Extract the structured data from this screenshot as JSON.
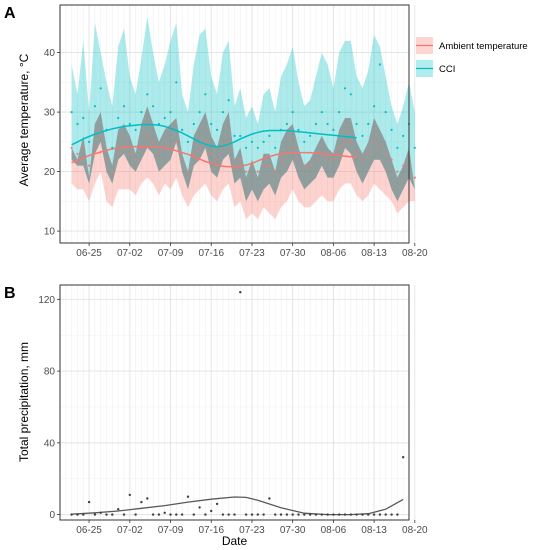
{
  "chart_data": [
    {
      "type": "line",
      "panel_label": "A",
      "ylabel": "Average temperature, °C",
      "xlabel": "",
      "x_tick_labels": [
        "06-25",
        "07-02",
        "07-09",
        "07-16",
        "07-23",
        "07-30",
        "08-06",
        "08-13",
        "08-20"
      ],
      "y_ticks": [
        10,
        20,
        30,
        40
      ],
      "xlim_days": [
        -5,
        55
      ],
      "ylim": [
        8,
        48
      ],
      "grid": true,
      "legend_position": "right",
      "series": [
        {
          "name": "Ambient temperature",
          "color": "#F8766D",
          "points": [
            24,
            23,
            24,
            21,
            24,
            26,
            22,
            20,
            23,
            24,
            23,
            22,
            24,
            26,
            25,
            23,
            24,
            24,
            25,
            22,
            20,
            23,
            24,
            25,
            23,
            22,
            24,
            25,
            21,
            22,
            20,
            21,
            20,
            21,
            21,
            20,
            22,
            23,
            24,
            22,
            21,
            21,
            22,
            23,
            22,
            22,
            24,
            25,
            25,
            23,
            22,
            23,
            25,
            24,
            23,
            22,
            20,
            21,
            22,
            19
          ],
          "smooth": [
            21.5,
            21.9,
            22.3,
            22.7,
            23.0,
            23.3,
            23.6,
            23.8,
            24.0,
            24.1,
            24.2,
            24.2,
            24.2,
            24.2,
            24.2,
            24.1,
            24.0,
            23.8,
            23.5,
            23.2,
            22.9,
            22.5,
            22.1,
            21.7,
            21.4,
            21.1,
            20.9,
            20.8,
            20.8,
            20.9,
            21.1,
            21.4,
            21.8,
            22.2,
            22.5,
            22.8,
            23.0,
            23.1,
            23.2,
            23.2,
            23.2,
            23.2,
            23.1,
            23.0,
            22.9,
            22.8,
            22.7,
            22.6,
            22.5,
            22.4
          ],
          "band_upper": [
            24,
            22,
            26,
            19,
            28,
            30,
            24,
            21,
            27,
            28,
            26,
            23,
            28,
            31,
            28,
            25,
            27,
            28,
            29,
            23,
            20,
            26,
            28,
            30,
            26,
            24,
            28,
            30,
            22,
            24,
            19,
            22,
            19,
            23,
            23,
            20,
            25,
            27,
            28,
            24,
            21,
            22,
            24,
            26,
            24,
            23,
            27,
            29,
            29,
            25,
            23,
            25,
            29,
            27,
            25,
            22,
            19,
            21,
            24,
            17
          ],
          "band_lower": [
            18,
            17,
            17,
            15,
            18,
            20,
            15,
            14,
            17,
            17,
            17,
            16,
            18,
            19,
            18,
            16,
            18,
            17,
            19,
            16,
            14,
            16,
            17,
            18,
            16,
            15,
            17,
            18,
            14,
            15,
            12,
            13,
            12,
            14,
            13,
            12,
            14,
            15,
            17,
            15,
            14,
            14,
            15,
            16,
            15,
            15,
            17,
            18,
            18,
            16,
            15,
            16,
            18,
            17,
            16,
            15,
            13,
            14,
            15,
            15
          ]
        },
        {
          "name": "CCI",
          "color": "#00BFC4",
          "points": [
            30,
            28,
            29,
            25,
            31,
            34,
            27,
            24,
            29,
            31,
            28,
            27,
            30,
            33,
            31,
            28,
            29,
            30,
            35,
            27,
            25,
            28,
            30,
            33,
            28,
            27,
            30,
            32,
            26,
            26,
            24,
            25,
            24,
            25,
            26,
            24,
            27,
            28,
            30,
            27,
            25,
            26,
            28,
            30,
            28,
            27,
            30,
            34,
            33,
            28,
            26,
            28,
            31,
            38,
            30,
            27,
            24,
            26,
            28,
            24
          ],
          "smooth": [
            24.5,
            25.0,
            25.5,
            25.9,
            26.3,
            26.6,
            26.9,
            27.2,
            27.4,
            27.6,
            27.7,
            27.8,
            27.9,
            27.9,
            27.9,
            27.8,
            27.6,
            27.3,
            26.9,
            26.5,
            26.0,
            25.5,
            25.0,
            24.6,
            24.3,
            24.2,
            24.3,
            24.6,
            25.0,
            25.5,
            25.9,
            26.3,
            26.6,
            26.8,
            26.9,
            26.9,
            26.9,
            26.9,
            26.8,
            26.7,
            26.6,
            26.5,
            26.4,
            26.3,
            26.2,
            26.1,
            26.0,
            25.9,
            25.8,
            25.7
          ],
          "band_upper": [
            38,
            33,
            42,
            30,
            45,
            40,
            35,
            31,
            41,
            44,
            36,
            33,
            39,
            46,
            40,
            35,
            38,
            42,
            45,
            33,
            30,
            38,
            43,
            44,
            36,
            33,
            40,
            42,
            31,
            34,
            29,
            31,
            28,
            33,
            34,
            30,
            36,
            38,
            41,
            35,
            31,
            32,
            36,
            40,
            38,
            34,
            40,
            42,
            42,
            36,
            34,
            37,
            43,
            41,
            36,
            31,
            28,
            31,
            35,
            30
          ],
          "band_lower": [
            22,
            21,
            21,
            18,
            23,
            25,
            20,
            18,
            22,
            23,
            21,
            20,
            22,
            24,
            23,
            20,
            21,
            22,
            25,
            20,
            17,
            21,
            22,
            24,
            20,
            19,
            22,
            23,
            18,
            19,
            15,
            17,
            15,
            17,
            18,
            16,
            19,
            20,
            22,
            19,
            17,
            18,
            19,
            21,
            19,
            19,
            21,
            24,
            23,
            20,
            18,
            20,
            22,
            22,
            20,
            17,
            15,
            17,
            19,
            17
          ]
        }
      ]
    },
    {
      "type": "scatter",
      "panel_label": "B",
      "ylabel": "Total precipitation, mm",
      "xlabel": "Date",
      "x_tick_labels": [
        "06-25",
        "07-02",
        "07-09",
        "07-16",
        "07-23",
        "07-30",
        "08-06",
        "08-13",
        "08-20"
      ],
      "y_ticks": [
        0,
        40,
        80,
        120
      ],
      "xlim_days": [
        -5,
        55
      ],
      "ylim": [
        -3,
        128
      ],
      "grid": true,
      "series": [
        {
          "name": "",
          "color": "#595959",
          "points": [
            [
              -3,
              0
            ],
            [
              -2,
              0
            ],
            [
              -1,
              0
            ],
            [
              0,
              7
            ],
            [
              1,
              0
            ],
            [
              2,
              1
            ],
            [
              3,
              0
            ],
            [
              4,
              0
            ],
            [
              5,
              3
            ],
            [
              6,
              0
            ],
            [
              7,
              11
            ],
            [
              8,
              0
            ],
            [
              9,
              7
            ],
            [
              10,
              9
            ],
            [
              11,
              0
            ],
            [
              12,
              0
            ],
            [
              13,
              1
            ],
            [
              14,
              0
            ],
            [
              15,
              0
            ],
            [
              16,
              0
            ],
            [
              17,
              10
            ],
            [
              18,
              0
            ],
            [
              19,
              4
            ],
            [
              20,
              0
            ],
            [
              21,
              2
            ],
            [
              22,
              6
            ],
            [
              23,
              0
            ],
            [
              24,
              0
            ],
            [
              25,
              0
            ],
            [
              26,
              124
            ],
            [
              27,
              0
            ],
            [
              28,
              0
            ],
            [
              29,
              0
            ],
            [
              30,
              0
            ],
            [
              31,
              9
            ],
            [
              32,
              0
            ],
            [
              33,
              0
            ],
            [
              34,
              0
            ],
            [
              35,
              0
            ],
            [
              36,
              0
            ],
            [
              37,
              0
            ],
            [
              38,
              0
            ],
            [
              39,
              0
            ],
            [
              40,
              0
            ],
            [
              41,
              0
            ],
            [
              42,
              0
            ],
            [
              43,
              0
            ],
            [
              44,
              0
            ],
            [
              45,
              0
            ],
            [
              46,
              0
            ],
            [
              47,
              0
            ],
            [
              48,
              0
            ],
            [
              49,
              0
            ],
            [
              50,
              0
            ],
            [
              51,
              0
            ],
            [
              52,
              0
            ],
            [
              53,
              0
            ],
            [
              54,
              32
            ]
          ],
          "smooth": [
            [
              -3,
              0.3
            ],
            [
              1,
              1.0
            ],
            [
              5,
              2.0
            ],
            [
              9,
              3.5
            ],
            [
              13,
              5.0
            ],
            [
              17,
              7.0
            ],
            [
              21,
              8.6
            ],
            [
              25,
              9.8
            ],
            [
              27,
              9.6
            ],
            [
              29,
              8.0
            ],
            [
              33,
              3.8
            ],
            [
              37,
              0.8
            ],
            [
              41,
              0
            ],
            [
              45,
              0
            ],
            [
              48,
              0.5
            ],
            [
              51,
              3.0
            ],
            [
              54,
              8.5
            ]
          ]
        }
      ]
    }
  ]
}
